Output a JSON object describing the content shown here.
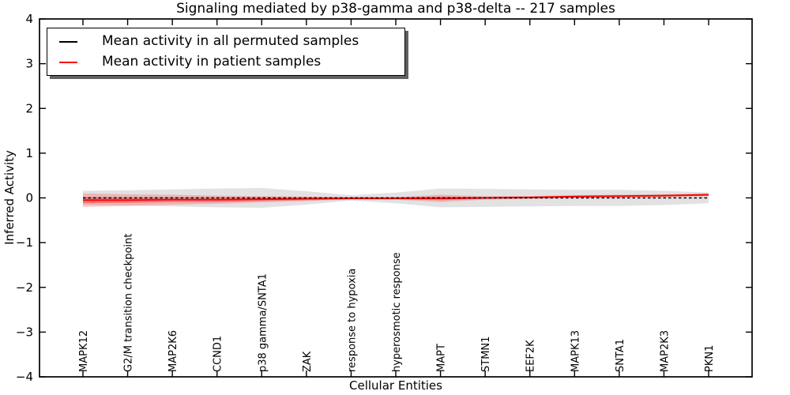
{
  "chart_data": {
    "type": "line",
    "title": "Signaling mediated by p38-gamma and p38-delta -- 217 samples",
    "xlabel": "Cellular Entities",
    "ylabel": "Inferred Activity",
    "categories": [
      "MAPK12",
      "G2/M transition checkpoint",
      "MAP2K6",
      "CCND1",
      "p38 gamma/SNTA1",
      "ZAK",
      "response to hypoxia",
      "hyperosmotic response",
      "MAPT",
      "STMN1",
      "EEF2K",
      "MAPK13",
      "SNTA1",
      "MAP2K3",
      "PKN1"
    ],
    "ylim": [
      -4,
      4
    ],
    "y_ticks": [
      -4,
      -3,
      -2,
      -1,
      0,
      1,
      2,
      3,
      4
    ],
    "y_tick_labels": [
      "−4",
      "−3",
      "−2",
      "−1",
      "0",
      "1",
      "2",
      "3",
      "4"
    ],
    "grid": false,
    "legend_position": "upper left",
    "series": [
      {
        "name": "Mean activity in all permuted samples",
        "color": "#000000",
        "linestyle": "dashed",
        "width": 1.5,
        "values": [
          0,
          0,
          0,
          0,
          0,
          0,
          0,
          0,
          0,
          0,
          0,
          0,
          0,
          0,
          0
        ]
      },
      {
        "name": "Mean activity in patient samples",
        "color": "#ff0000",
        "linestyle": "solid",
        "width": 1.8,
        "values": [
          -0.05,
          -0.05,
          -0.04,
          -0.04,
          -0.03,
          -0.02,
          -0.01,
          -0.01,
          -0.01,
          0.0,
          0.01,
          0.03,
          0.04,
          0.05,
          0.07
        ]
      }
    ],
    "bands": [
      {
        "name": "permuted-confidence",
        "color": "#a0a0a0",
        "opacity": 0.3,
        "upper": [
          0.16,
          0.17,
          0.19,
          0.21,
          0.22,
          0.15,
          0.06,
          0.12,
          0.21,
          0.2,
          0.19,
          0.18,
          0.18,
          0.16,
          0.12
        ],
        "lower": [
          -0.16,
          -0.17,
          -0.19,
          -0.21,
          -0.22,
          -0.15,
          -0.06,
          -0.12,
          -0.21,
          -0.2,
          -0.19,
          -0.18,
          -0.18,
          -0.16,
          -0.12
        ]
      },
      {
        "name": "patient-confidence-outer",
        "color": "#ff4d4d",
        "opacity": 0.3,
        "upper": [
          0.1,
          0.08,
          0.07,
          0.05,
          0.04,
          0.03,
          0.02,
          0.02,
          0.07,
          0.04,
          0.04,
          0.06,
          0.07,
          0.08,
          0.1
        ],
        "lower": [
          -0.2,
          -0.18,
          -0.15,
          -0.13,
          -0.1,
          -0.07,
          -0.04,
          -0.04,
          -0.09,
          -0.04,
          -0.02,
          0.0,
          0.01,
          0.02,
          0.04
        ]
      },
      {
        "name": "patient-confidence-inner",
        "color": "#f03030",
        "opacity": 0.45,
        "upper": [
          0.02,
          0.01,
          0.01,
          0.01,
          0.01,
          0.01,
          0.01,
          0.01,
          0.03,
          0.02,
          0.03,
          0.05,
          0.06,
          0.07,
          0.09
        ],
        "lower": [
          -0.12,
          -0.11,
          -0.09,
          -0.09,
          -0.07,
          -0.05,
          -0.03,
          -0.03,
          -0.05,
          -0.02,
          -0.01,
          0.01,
          0.02,
          0.03,
          0.05
        ]
      }
    ]
  }
}
